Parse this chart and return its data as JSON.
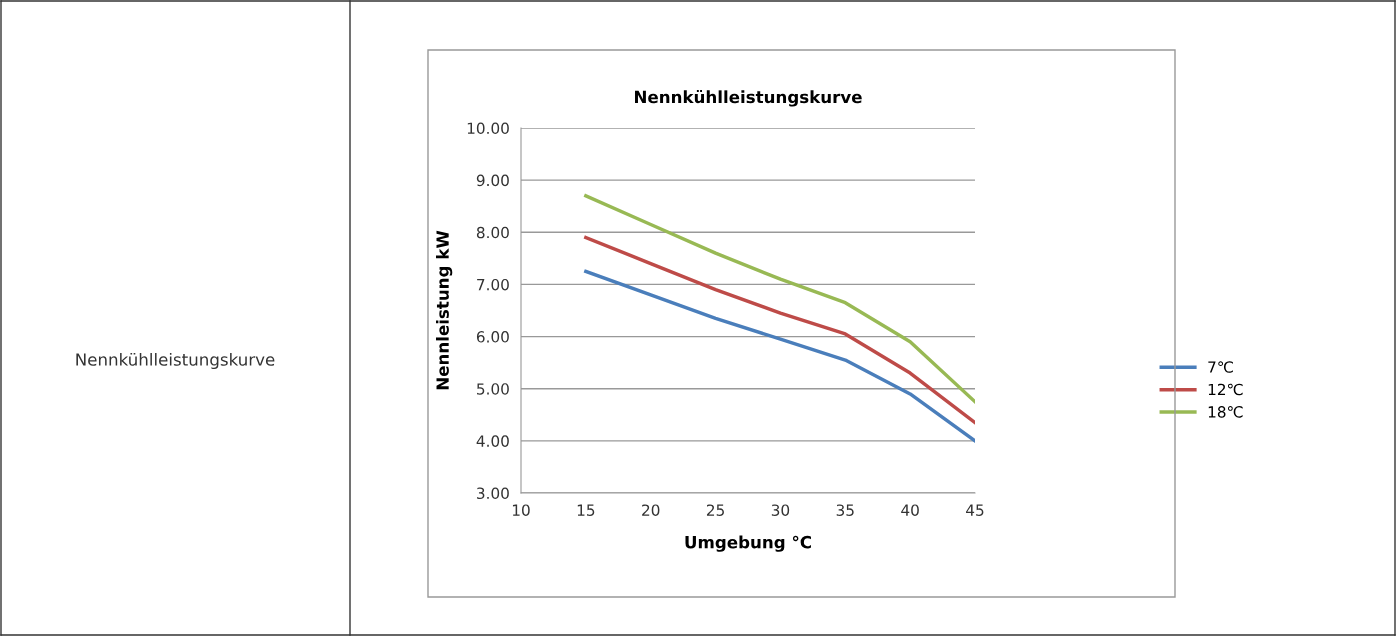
{
  "chart_data": {
    "type": "line",
    "title": "Nennkühlleistungskurve",
    "xlabel": "Umgebung °C",
    "ylabel": "Nennleistung kW",
    "x": [
      15,
      20,
      25,
      30,
      35,
      40,
      45
    ],
    "series": [
      {
        "name": "7℃",
        "color": "#4a7ebb",
        "values": [
          7.25,
          6.8,
          6.35,
          5.95,
          5.55,
          4.9,
          4.0
        ]
      },
      {
        "name": "12℃",
        "color": "#be4b48",
        "values": [
          7.9,
          7.4,
          6.9,
          6.45,
          6.05,
          5.3,
          4.35
        ]
      },
      {
        "name": "18℃",
        "color": "#98b954",
        "values": [
          8.7,
          8.15,
          7.6,
          7.1,
          6.65,
          5.9,
          4.75
        ]
      }
    ],
    "xlim": [
      10,
      45
    ],
    "xticks": [
      10,
      15,
      20,
      25,
      30,
      35,
      40,
      45
    ],
    "ylim": [
      3,
      10
    ],
    "yticks": [
      {
        "value": 3,
        "label": "3.00"
      },
      {
        "value": 4,
        "label": "4.00"
      },
      {
        "value": 5,
        "label": "5.00"
      },
      {
        "value": 6,
        "label": "6.00"
      },
      {
        "value": 7,
        "label": "7.00"
      },
      {
        "value": 8,
        "label": "8.00"
      },
      {
        "value": 9,
        "label": "9.00"
      },
      {
        "value": 10,
        "label": "10.00"
      }
    ],
    "grid": "y",
    "legend": "right",
    "marker": "none",
    "line_style": "solid",
    "annotations": [
      "Nennkühlleistungskurve"
    ]
  }
}
